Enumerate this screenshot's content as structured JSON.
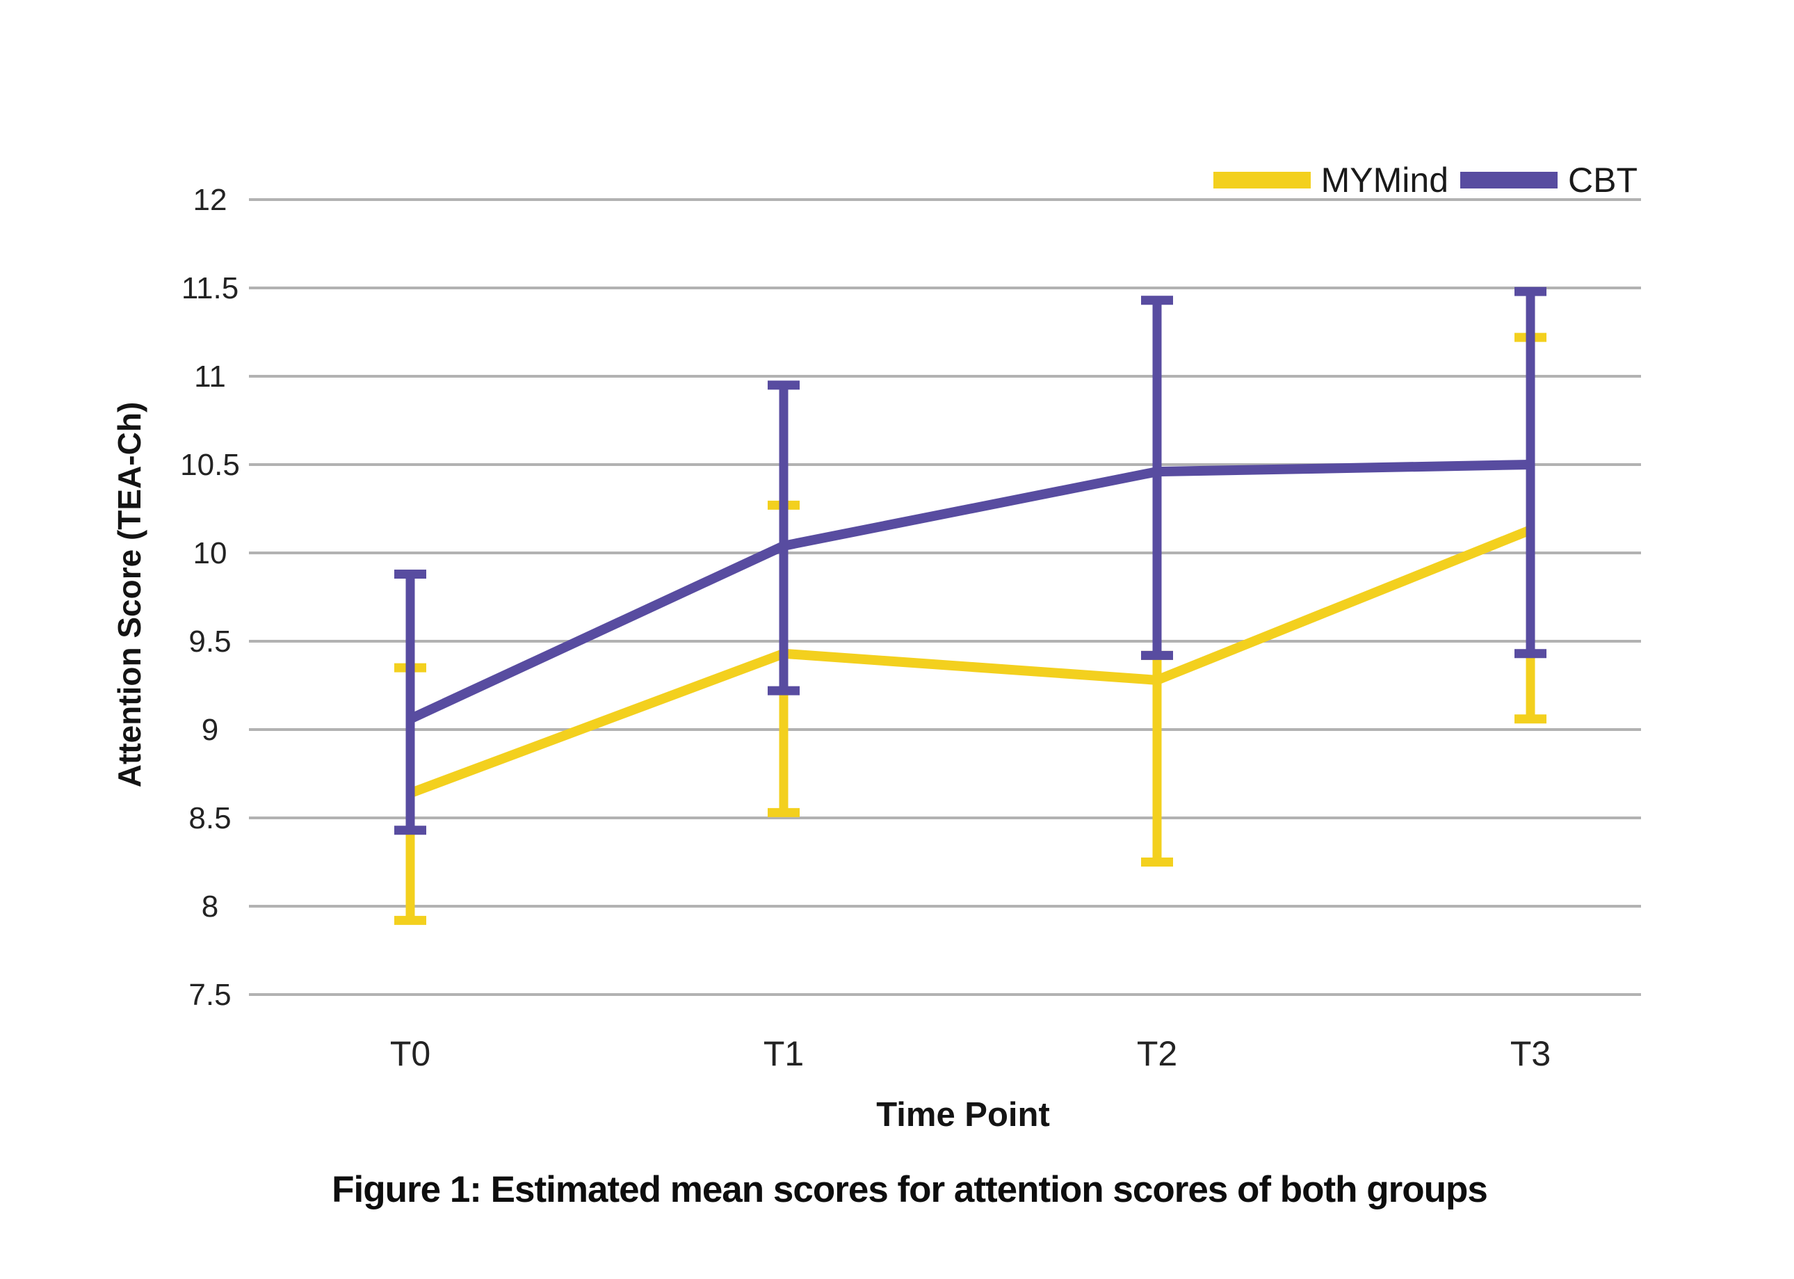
{
  "figure": {
    "caption": "Figure 1: Estimated mean scores for attention scores of both groups"
  },
  "chart_data": {
    "type": "line",
    "title": "",
    "xlabel": "Time Point",
    "ylabel": "Attention Score (TEA-Ch)",
    "categories": [
      "T0",
      "T1",
      "T2",
      "T3"
    ],
    "y_ticks": [
      12,
      11.5,
      11,
      10.5,
      10,
      9.5,
      9,
      8.5,
      8,
      7.5
    ],
    "ylim": [
      7.5,
      12
    ],
    "grid": true,
    "legend_position": "top-right",
    "error_bars": true,
    "colors": {
      "grid": "#b2b2b2",
      "tick_text": "#232323"
    },
    "series": [
      {
        "name": "MYMind",
        "color": "#f3d01e",
        "values": [
          8.64,
          9.43,
          9.28,
          10.13
        ],
        "ci_low": [
          7.92,
          8.53,
          8.25,
          9.06
        ],
        "ci_high": [
          9.35,
          10.27,
          9.42,
          11.22
        ]
      },
      {
        "name": "CBT",
        "color": "#584ca0",
        "values": [
          9.06,
          10.04,
          10.46,
          10.5
        ],
        "ci_low": [
          8.43,
          9.22,
          9.42,
          9.43
        ],
        "ci_high": [
          9.88,
          10.95,
          11.43,
          11.48
        ]
      }
    ]
  }
}
